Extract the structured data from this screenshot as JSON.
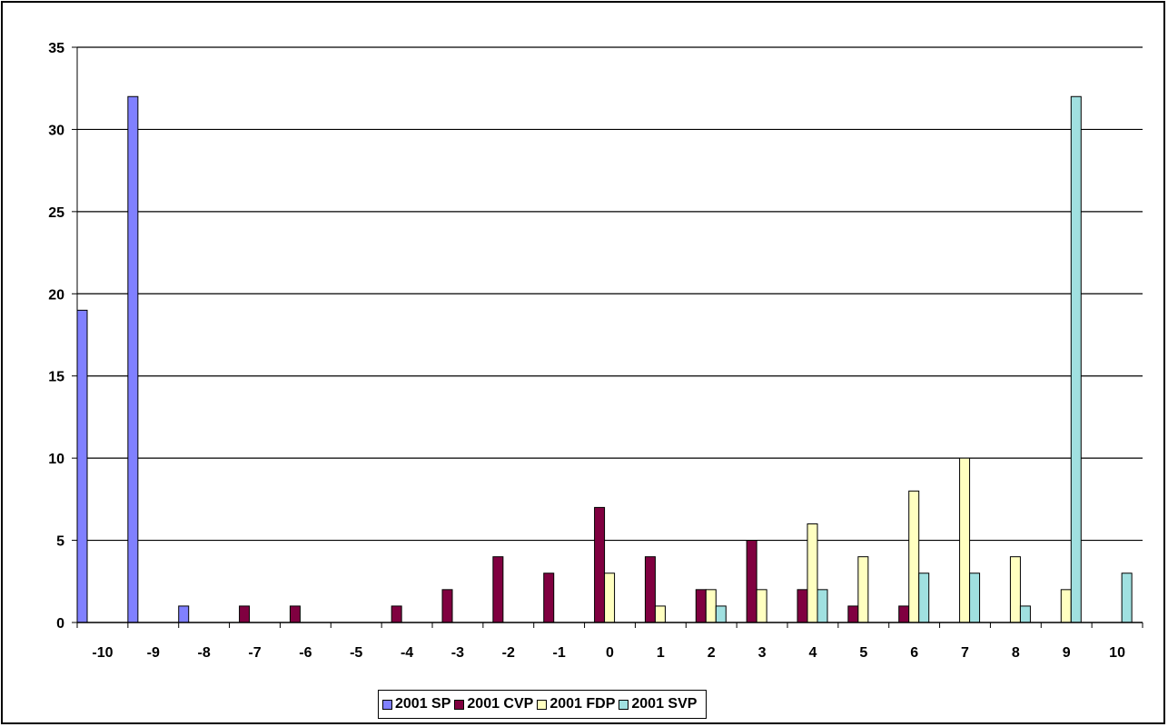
{
  "chart_data": {
    "type": "bar",
    "categories": [
      "-10",
      "-9",
      "-8",
      "-7",
      "-6",
      "-5",
      "-4",
      "-3",
      "-2",
      "-1",
      "0",
      "1",
      "2",
      "3",
      "4",
      "5",
      "6",
      "7",
      "8",
      "9",
      "10"
    ],
    "series": [
      {
        "name": "2001 SP",
        "color": "#8080ff",
        "values": [
          19,
          32,
          1,
          0,
          0,
          0,
          0,
          0,
          0,
          0,
          0,
          0,
          0,
          0,
          0,
          0,
          0,
          0,
          0,
          0,
          0
        ]
      },
      {
        "name": "2001 CVP",
        "color": "#800040",
        "values": [
          0,
          0,
          0,
          1,
          1,
          0,
          1,
          2,
          4,
          3,
          7,
          4,
          2,
          5,
          2,
          1,
          1,
          0,
          0,
          0,
          0
        ]
      },
      {
        "name": "2001 FDP",
        "color": "#ffffc0",
        "values": [
          0,
          0,
          0,
          0,
          0,
          0,
          0,
          0,
          0,
          0,
          3,
          1,
          2,
          2,
          6,
          4,
          8,
          10,
          4,
          2,
          0
        ]
      },
      {
        "name": "2001 SVP",
        "color": "#a0e0e0",
        "values": [
          0,
          0,
          0,
          0,
          0,
          0,
          0,
          0,
          0,
          0,
          0,
          0,
          1,
          0,
          2,
          0,
          3,
          3,
          1,
          32,
          3
        ]
      }
    ],
    "ylim": [
      0,
      35
    ],
    "yticks": [
      0,
      5,
      10,
      15,
      20,
      25,
      30,
      35
    ],
    "grid": true,
    "legend_position": "bottom",
    "title": "",
    "xlabel": "",
    "ylabel": ""
  }
}
